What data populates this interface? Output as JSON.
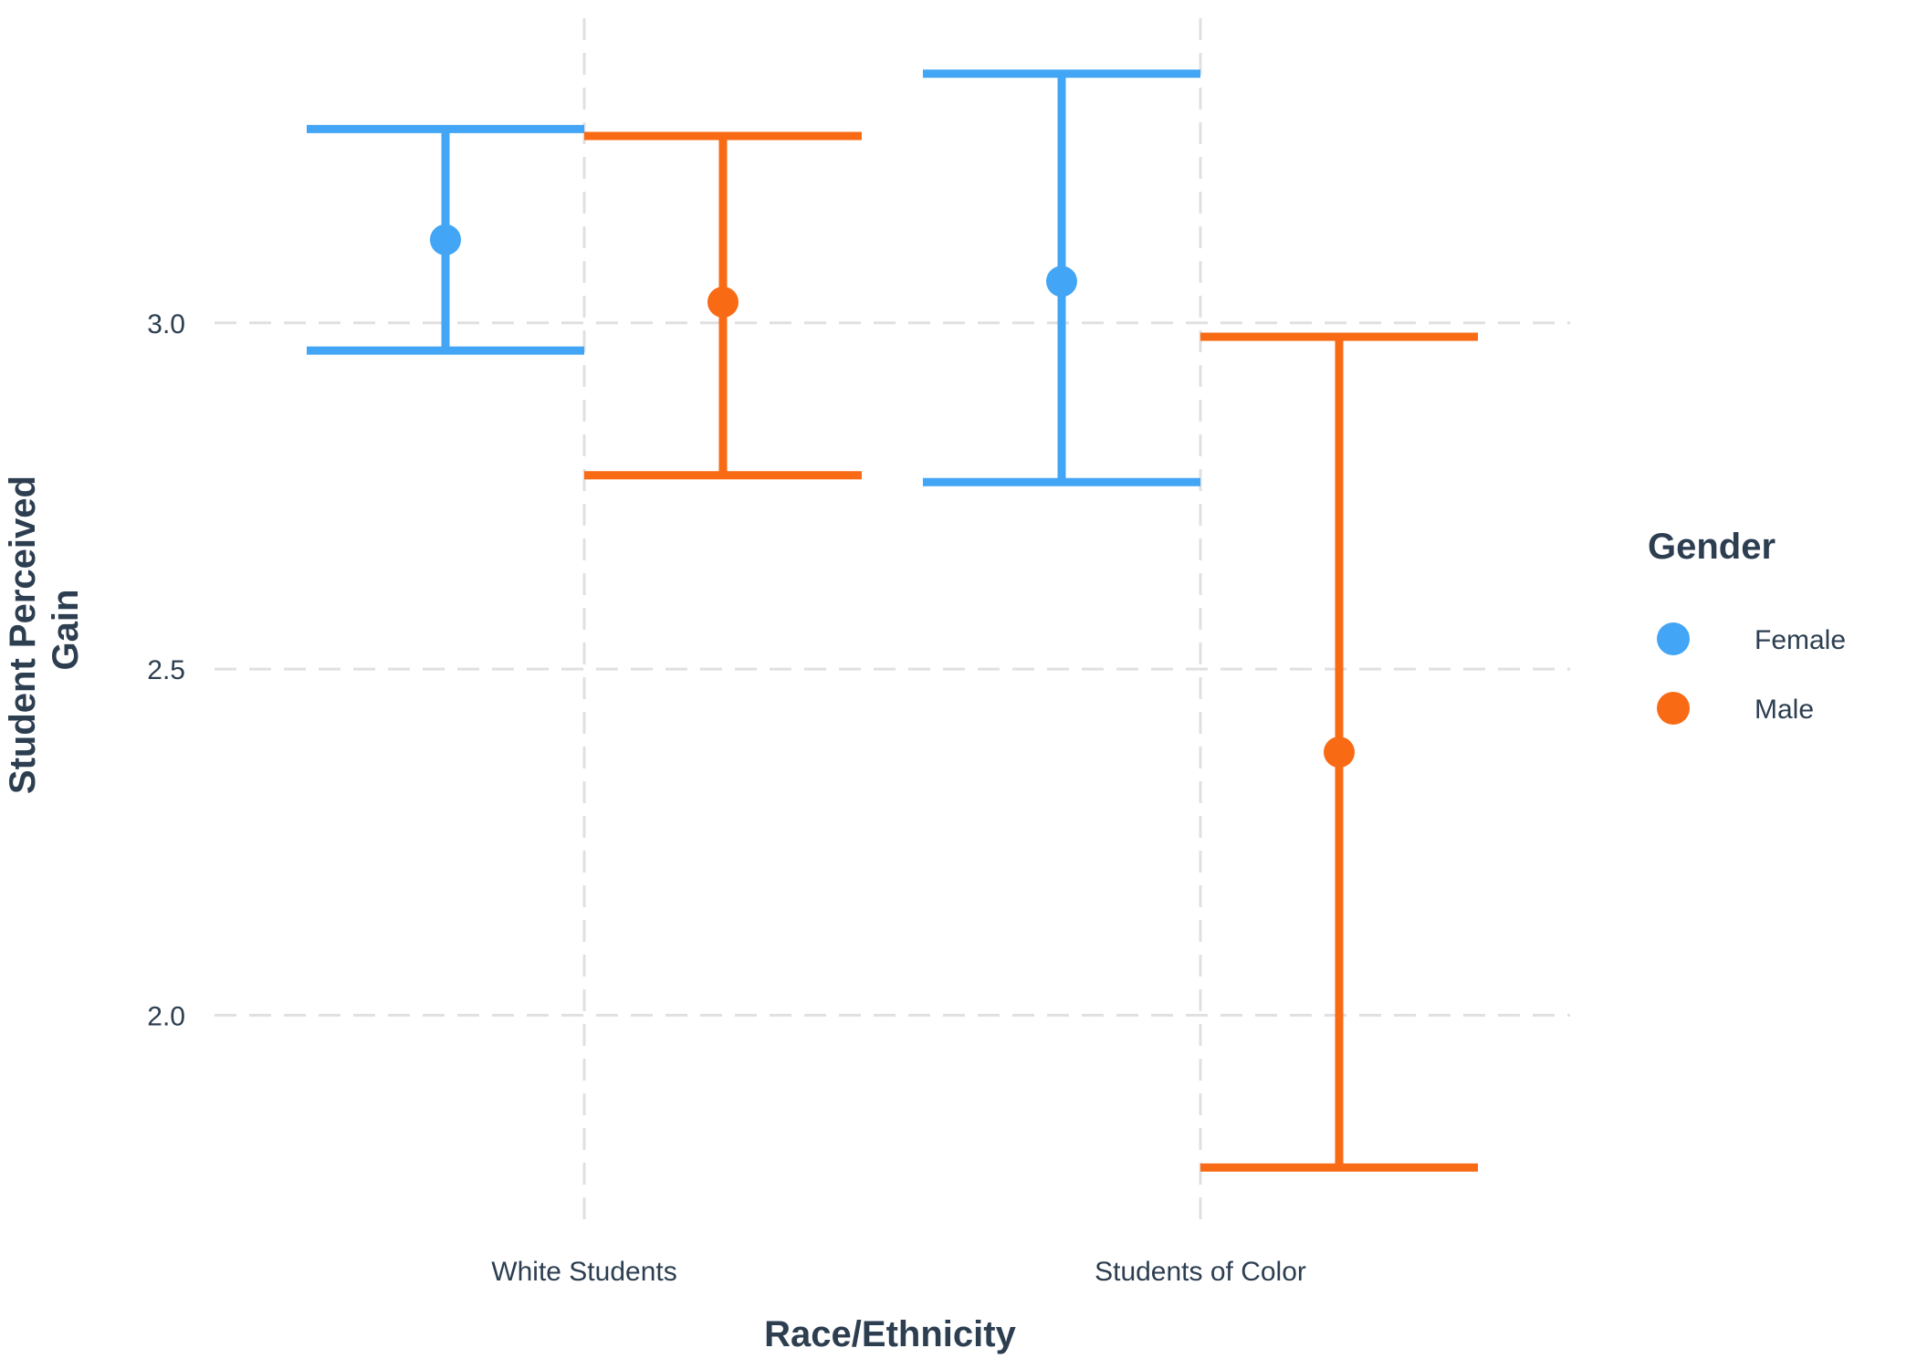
{
  "chart_data": {
    "type": "errorbar",
    "title": "",
    "xlabel": "Race/Ethnicity",
    "ylabel_lines": [
      "Student Perceived",
      "Gain"
    ],
    "categories": [
      "White Students",
      "Students of Color"
    ],
    "ylim": [
      1.7,
      3.44
    ],
    "yticks": [
      2.0,
      2.5,
      3.0
    ],
    "ytick_labels": [
      "2.0",
      "2.5",
      "3.0"
    ],
    "grid": true,
    "legend": {
      "title": "Gender",
      "position": "right"
    },
    "series": [
      {
        "name": "Female",
        "color": "#42a5f5",
        "points": [
          {
            "category": "White Students",
            "mean": 3.12,
            "lower": 2.96,
            "upper": 3.28
          },
          {
            "category": "Students of Color",
            "mean": 3.06,
            "lower": 2.77,
            "upper": 3.36
          }
        ]
      },
      {
        "name": "Male",
        "color": "#f96a14",
        "points": [
          {
            "category": "White Students",
            "mean": 3.03,
            "lower": 2.78,
            "upper": 3.27
          },
          {
            "category": "Students of Color",
            "mean": 2.38,
            "lower": 1.78,
            "upper": 2.98
          }
        ]
      }
    ]
  }
}
